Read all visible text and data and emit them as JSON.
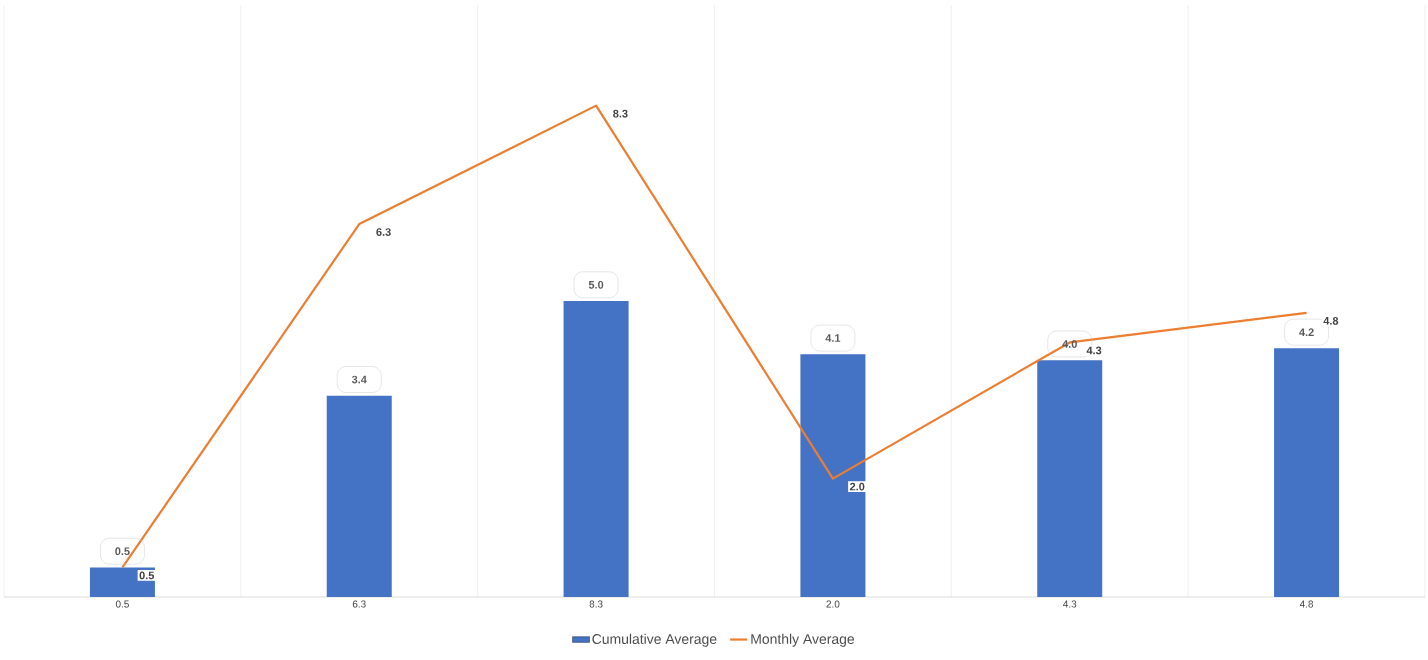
{
  "chart_data": {
    "type": "bar",
    "categories": [
      "0.5",
      "6.3",
      "8.3",
      "2.0",
      "4.3",
      "4.8"
    ],
    "series": [
      {
        "name": "Cumulative Average",
        "color": "#4472c4",
        "values": [
          0.5,
          3.4,
          5.0,
          4.1,
          4.0,
          4.2
        ],
        "value_labels": [
          "0.5",
          "3.4",
          "5.0",
          "4.1",
          "4.0",
          "4.2"
        ]
      },
      {
        "name": "Monthly Average",
        "type": "line",
        "color": "#ed7d31",
        "values": [
          0.5,
          6.3,
          8.3,
          2.0,
          4.3,
          4.8
        ],
        "value_labels": [
          "0.5",
          "6.3",
          "8.3",
          "2.0",
          "4.3",
          "4.8"
        ]
      }
    ],
    "ylim": [
      0,
      10
    ],
    "tick_labels": "x",
    "grid": true,
    "legend": "bottom"
  }
}
